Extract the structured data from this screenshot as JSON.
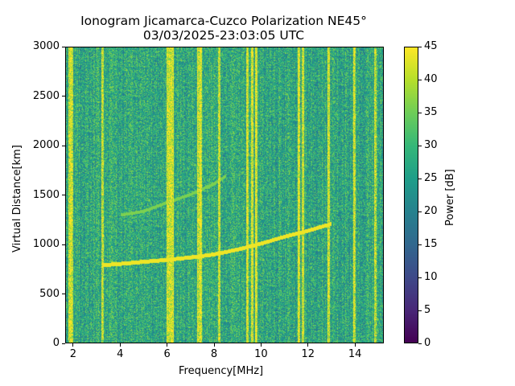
{
  "chart_data": {
    "type": "heatmap",
    "title": "Ionogram Jicamarca-Cuzco Polarization NE45°",
    "subtitle": "03/03/2025-23:03:05 UTC",
    "xlabel": "Frequency[MHz]",
    "ylabel": "Virtual Distance[km]",
    "xlim": [
      1.66,
      15.23
    ],
    "ylim": [
      0,
      3000
    ],
    "xticks": [
      2,
      4,
      6,
      8,
      10,
      12,
      14
    ],
    "yticks": [
      0,
      500,
      1000,
      1500,
      2000,
      2500,
      3000
    ],
    "colorbar": {
      "label": "Power [dB]",
      "range": [
        0,
        45
      ],
      "ticks": [
        0,
        5,
        10,
        15,
        20,
        25,
        30,
        35,
        40,
        45
      ],
      "colormap": "viridis"
    },
    "background_level_db": 27,
    "interference_lines_mhz": [
      1.8,
      1.9,
      3.2,
      6.0,
      6.1,
      6.2,
      7.3,
      7.4,
      8.2,
      9.4,
      9.6,
      9.8,
      11.6,
      11.8,
      12.9,
      14.0,
      14.9
    ],
    "traces": [
      {
        "name": "primary echo",
        "points": [
          [
            3.2,
            790
          ],
          [
            4,
            805
          ],
          [
            5,
            825
          ],
          [
            6,
            845
          ],
          [
            7,
            870
          ],
          [
            8,
            900
          ],
          [
            9,
            950
          ],
          [
            10,
            1010
          ],
          [
            11,
            1080
          ],
          [
            12,
            1140
          ],
          [
            13,
            1210
          ]
        ]
      },
      {
        "name": "second hop",
        "points": [
          [
            4,
            1300
          ],
          [
            5,
            1340
          ],
          [
            6,
            1430
          ],
          [
            7,
            1510
          ],
          [
            8,
            1620
          ],
          [
            8.5,
            1700
          ]
        ]
      }
    ]
  }
}
